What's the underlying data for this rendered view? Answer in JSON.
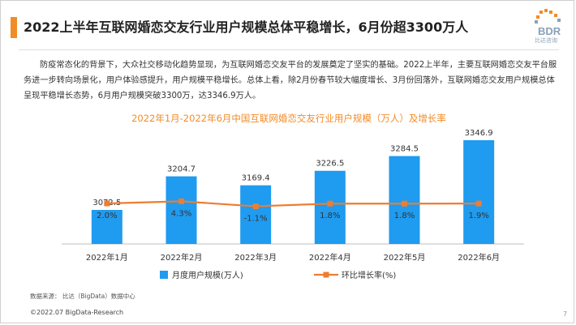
{
  "header": {
    "title": "2022上半年互联网婚恋交友行业用户规模总体平稳增长，6月份超3300万人",
    "logo_text": "BDR",
    "logo_subtext": "比达咨询"
  },
  "intro": {
    "paragraph": "防疫常态化的背景下，大众社交移动化趋势显现，为互联网婚恋交友平台的发展奠定了坚实的基础。2022上半年，主要互联网婚恋交友平台服务进一步转向场景化，用户体验感提升，用户规模平稳增长。总体上看，除2月份春节较大幅度增长、3月份回落外，互联网婚恋交友用户规模总体呈现平稳增长态势，6月用户规模突破3300万，达3346.9万人。"
  },
  "chart_data": {
    "type": "bar",
    "title": "2022年1月-2022年6月中国互联网婚恋交友行业用户规模（万人）及增长率",
    "categories": [
      "2022年1月",
      "2022年2月",
      "2022年3月",
      "2022年4月",
      "2022年5月",
      "2022年6月"
    ],
    "series": [
      {
        "name": "月度用户规模(万人)",
        "type": "bar",
        "values": [
          3072.5,
          3204.7,
          3169.4,
          3226.5,
          3284.5,
          3346.9
        ],
        "labels": [
          "3072.5",
          "3204.7",
          "3169.4",
          "3226.5",
          "3284.5",
          "3346.9"
        ],
        "color": "#1f9bf0"
      },
      {
        "name": "环比增长率(%)",
        "type": "line",
        "values": [
          2.0,
          4.3,
          -1.1,
          1.8,
          1.8,
          1.9
        ],
        "labels": [
          "2.0%",
          "4.3%",
          "-1.1%",
          "1.8%",
          "1.8%",
          "1.9%"
        ],
        "color": "#ed7d31"
      }
    ],
    "legend_position": "bottom",
    "grid": false
  },
  "footer": {
    "source": "数据来源：  比达（BigData）数据中心",
    "copyright": "©2022.07 BigData-Research",
    "page_number": "7"
  }
}
